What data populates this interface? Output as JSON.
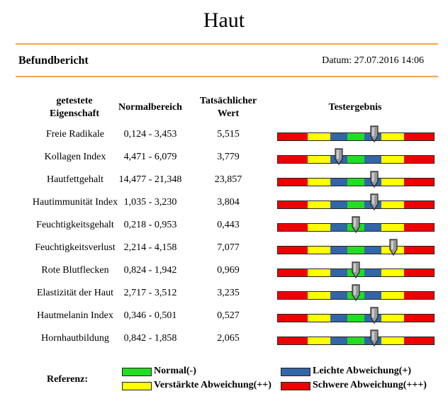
{
  "title": "Haut",
  "report_title": "Befundbericht",
  "date_label": "Datum: 27.07.2016 14:06",
  "headers": {
    "property": [
      "getestete",
      "Eigenschaft"
    ],
    "normal": "Normalbereich",
    "actual": [
      "Tatsächlicher",
      "Wert"
    ],
    "result": "Testergebnis"
  },
  "colors": {
    "red": "#ee0000",
    "yellow": "#ffff00",
    "blue": "#3366a8",
    "green": "#22dd22",
    "accent_rule": "#f3a64a"
  },
  "rows": [
    {
      "name": "Freie Radikale",
      "range": "0,124 - 3,453",
      "value": "5,515",
      "marker_fraction": 0.62
    },
    {
      "name": "Kollagen Index",
      "range": "4,471 - 6,079",
      "value": "3,779",
      "marker_fraction": 0.39
    },
    {
      "name": "Hautfettgehalt",
      "range": "14,477 - 21,348",
      "value": "23,857",
      "marker_fraction": 0.62
    },
    {
      "name": "Hautimmunität Index",
      "range": "1,035 - 3,230",
      "value": "3,804",
      "marker_fraction": 0.62
    },
    {
      "name": "Feuchtigkeitsgehalt",
      "range": "0,218 - 0,953",
      "value": "0,443",
      "marker_fraction": 0.5
    },
    {
      "name": "Feuchtigkeitsverlust",
      "range": "2,214 - 4,158",
      "value": "7,077",
      "marker_fraction": 0.74
    },
    {
      "name": "Rote Blutflecken",
      "range": "0,824 - 1,942",
      "value": "0,969",
      "marker_fraction": 0.5
    },
    {
      "name": "Elastizität der Haut",
      "range": "2,717 - 3,512",
      "value": "3,235",
      "marker_fraction": 0.5
    },
    {
      "name": "Hautmelanin Index",
      "range": "0,346 - 0,501",
      "value": "0,527",
      "marker_fraction": 0.62
    },
    {
      "name": "Hornhautbildung",
      "range": "0,842 - 1,858",
      "value": "2,065",
      "marker_fraction": 0.62
    }
  ],
  "legend": {
    "title": "Referenz:",
    "normal": "Normal(-)",
    "light": "Leichte Abweichung(+)",
    "strong": "Verstärkte Abweichung(++)",
    "severe": "Schwere Abweichung(+++)"
  }
}
